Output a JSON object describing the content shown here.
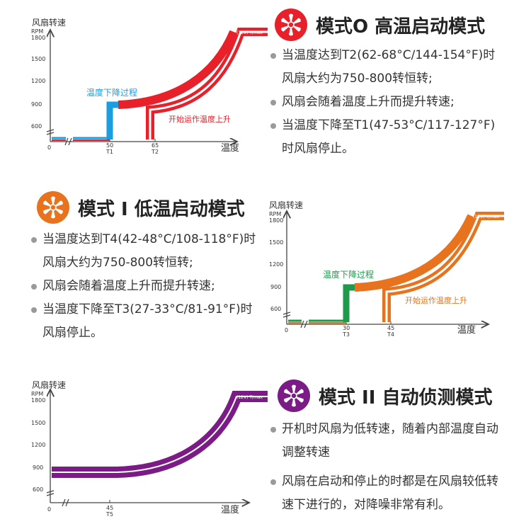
{
  "colors": {
    "mode0": "#e8202a",
    "mode1": "#e8731f",
    "mode2": "#7b1c86",
    "blue": "#1b9ee0",
    "green": "#1f9a4c"
  },
  "modes": [
    {
      "title": "模式O 高温启动模式",
      "bullets": [
        "当温度达到T2(62-68°C/144-154°F)时风扇大约为750-800转恒转;",
        "风扇会随着温度上升而提升转速;",
        "当温度下降至T1(47-53°C/117-127°F)时风扇停止。"
      ],
      "chart": {
        "ylabel": "风扇转速",
        "yunit": "RPM",
        "xlabel": "温度",
        "origin": "0",
        "yticks": [
          "1800",
          "1500",
          "1200",
          "900",
          "600"
        ],
        "xticks": [
          {
            "v": "50",
            "t": "T1"
          },
          {
            "v": "65",
            "t": "T2"
          }
        ],
        "down_label": "温度下降过程",
        "up_label": "开始运作温度上升",
        "cap": "(12V)  T/max"
      }
    },
    {
      "title": "模式 I 低温启动模式",
      "bullets": [
        "当温度达到T4(42-48°C/108-118°F)时风扇大约为750-800转恒转;",
        "风扇会随着温度上升而提升转速;",
        "当温度下降至T3(27-33°C/81-91°F)时风扇停止。"
      ],
      "chart": {
        "ylabel": "风扇转速",
        "yunit": "RPM",
        "xlabel": "温度",
        "origin": "0",
        "yticks": [
          "1800",
          "1500",
          "1200",
          "900",
          "600"
        ],
        "xticks": [
          {
            "v": "30",
            "t": "T3"
          },
          {
            "v": "45",
            "t": "T4"
          }
        ],
        "down_label": "温度下降过程",
        "up_label": "开始运作温度上升",
        "cap": "(12V)  T/max"
      }
    },
    {
      "title": "模式 II 自动侦测模式",
      "bullets": [
        "开机时风扇为低转速，随着内部温度自动调整转速",
        "风扇在启动和停止的时都是在风扇较低转速下进行的，对降噪非常有利。"
      ],
      "chart": {
        "ylabel": "风扇转速",
        "yunit": "RPM",
        "xlabel": "温度",
        "origin": "0",
        "yticks": [
          "1800",
          "1500",
          "1200",
          "900",
          "600"
        ],
        "xticks": [
          {
            "v": "45",
            "t": "T5"
          }
        ],
        "cap": "(12V)  T/max"
      }
    }
  ]
}
